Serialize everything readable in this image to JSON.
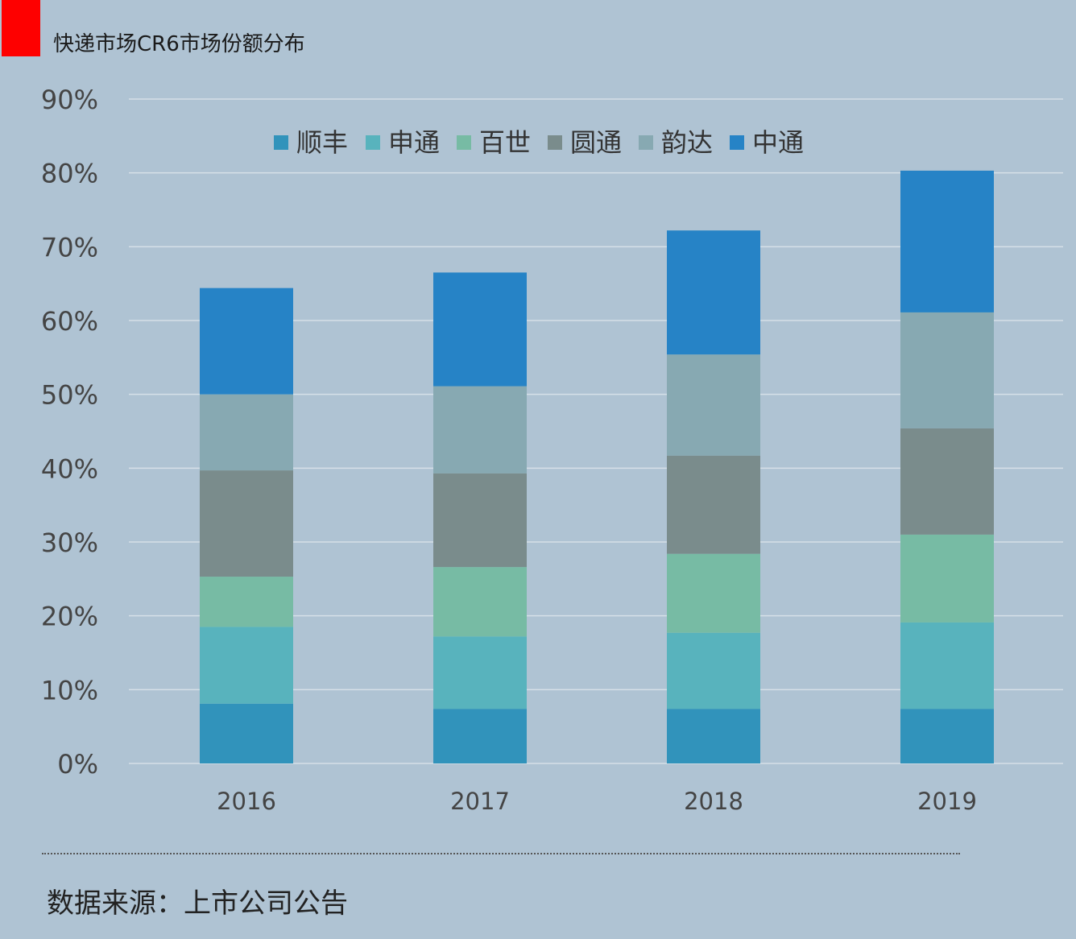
{
  "title": "快递市场CR6市场份额分布",
  "source": "数据来源：上市公司公告",
  "chart_data": {
    "type": "bar",
    "stacked": true,
    "title": "快递市场CR6市场份额分布",
    "categories": [
      "2016",
      "2017",
      "2018",
      "2019"
    ],
    "series": [
      {
        "name": "顺丰",
        "color": "#3193bb",
        "values": [
          8.1,
          7.4,
          7.4,
          7.4
        ]
      },
      {
        "name": "申通",
        "color": "#58b3bd",
        "values": [
          10.4,
          9.8,
          10.3,
          11.7
        ]
      },
      {
        "name": "百世",
        "color": "#77bba4",
        "values": [
          6.8,
          9.4,
          10.7,
          11.9
        ]
      },
      {
        "name": "圆通",
        "color": "#7a8c8c",
        "values": [
          14.4,
          12.7,
          13.3,
          14.4
        ]
      },
      {
        "name": "韵达",
        "color": "#87a9b2",
        "values": [
          10.3,
          11.8,
          13.7,
          15.7
        ]
      },
      {
        "name": "中通",
        "color": "#2683c6",
        "values": [
          14.4,
          15.4,
          16.8,
          19.2
        ]
      }
    ],
    "ylim": [
      0,
      90
    ],
    "yticks": [
      "0%",
      "10%",
      "20%",
      "30%",
      "40%",
      "50%",
      "60%",
      "70%",
      "80%",
      "90%"
    ],
    "grid": true,
    "legend": "top-center",
    "xlabel": "",
    "ylabel": ""
  }
}
